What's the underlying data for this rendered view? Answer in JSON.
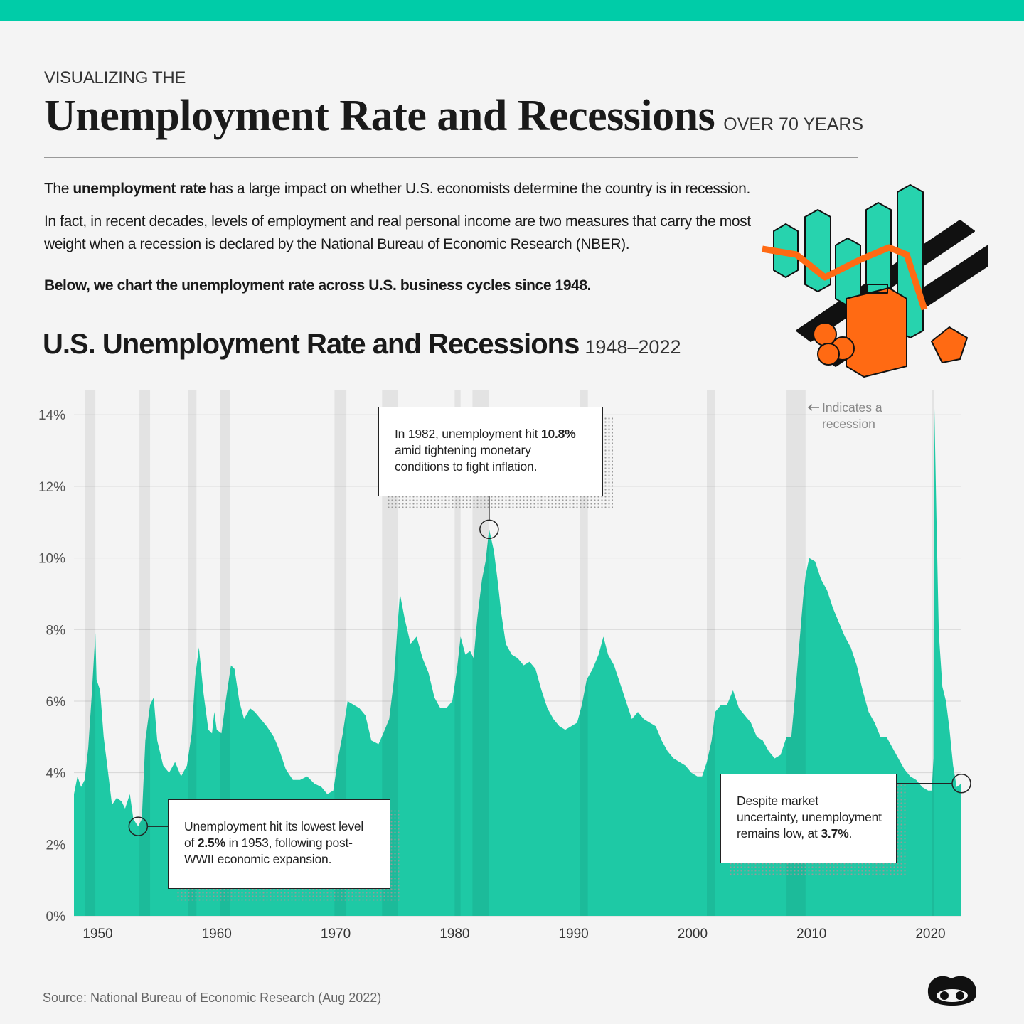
{
  "header": {
    "kicker": "VISUALIZING THE",
    "title": "Unemployment Rate and Recessions",
    "title_suffix": "OVER 70 YEARS"
  },
  "intro": {
    "paragraphs": [
      [
        "The ",
        "unemployment rate",
        " has a large impact on whether U.S. economists determine the country is in recession."
      ],
      [
        "In fact, in recent decades, levels of employment and real personal income are two measures that carry the most weight when a recession is declared by the National Bureau of Economic Research (NBER)."
      ],
      [
        "Below, we chart the unemployment rate across U.S. business cycles since 1948."
      ]
    ]
  },
  "chart_data": {
    "type": "area",
    "title": "U.S. Unemployment Rate and Recessions",
    "subtitle": "1948–2022",
    "color": "#1ec9a5",
    "x": [
      1948.0,
      1948.3,
      1948.6,
      1948.9,
      1949.2,
      1949.5,
      1949.8,
      1949.9,
      1950.2,
      1950.5,
      1950.8,
      1951.2,
      1951.6,
      1952.0,
      1952.3,
      1952.7,
      1953.0,
      1953.4,
      1953.7,
      1954.0,
      1954.4,
      1954.7,
      1955.0,
      1955.5,
      1956.0,
      1956.5,
      1957.0,
      1957.5,
      1957.9,
      1958.2,
      1958.5,
      1958.9,
      1959.3,
      1959.6,
      1959.8,
      1960.0,
      1960.4,
      1960.8,
      1961.2,
      1961.5,
      1961.9,
      1962.3,
      1962.8,
      1963.2,
      1963.7,
      1964.2,
      1964.8,
      1965.3,
      1965.8,
      1966.4,
      1967.0,
      1967.6,
      1968.2,
      1968.8,
      1969.3,
      1969.8,
      1970.2,
      1970.6,
      1971.0,
      1971.5,
      1972.0,
      1972.5,
      1973.0,
      1973.6,
      1974.0,
      1974.5,
      1974.9,
      1975.2,
      1975.4,
      1975.8,
      1976.3,
      1976.8,
      1977.3,
      1977.8,
      1978.3,
      1978.8,
      1979.3,
      1979.8,
      1980.2,
      1980.5,
      1980.9,
      1981.3,
      1981.6,
      1981.9,
      1982.3,
      1982.6,
      1982.9,
      1983.3,
      1983.6,
      1983.9,
      1984.3,
      1984.8,
      1985.3,
      1985.8,
      1986.3,
      1986.8,
      1987.3,
      1987.8,
      1988.3,
      1988.8,
      1989.3,
      1989.8,
      1990.3,
      1990.7,
      1991.1,
      1991.6,
      1992.1,
      1992.5,
      1992.9,
      1993.4,
      1993.9,
      1994.4,
      1994.9,
      1995.4,
      1995.9,
      1996.4,
      1996.9,
      1997.4,
      1997.9,
      1998.4,
      1998.9,
      1999.4,
      1999.9,
      2000.4,
      2000.8,
      2001.2,
      2001.6,
      2001.9,
      2002.4,
      2002.9,
      2003.4,
      2003.9,
      2004.4,
      2004.9,
      2005.4,
      2005.9,
      2006.4,
      2006.9,
      2007.4,
      2007.9,
      2008.3,
      2008.6,
      2008.9,
      2009.3,
      2009.5,
      2009.8,
      2010.3,
      2010.8,
      2011.3,
      2011.8,
      2012.3,
      2012.8,
      2013.3,
      2013.8,
      2014.3,
      2014.8,
      2015.3,
      2015.8,
      2016.3,
      2016.8,
      2017.3,
      2017.8,
      2018.3,
      2018.8,
      2019.3,
      2019.8,
      2020.1,
      2020.25,
      2020.3,
      2020.5,
      2020.7,
      2021.0,
      2021.3,
      2021.6,
      2021.9,
      2022.2,
      2022.6
    ],
    "values": [
      3.4,
      3.9,
      3.6,
      3.8,
      4.7,
      6.2,
      7.9,
      6.6,
      6.3,
      5.0,
      4.2,
      3.1,
      3.3,
      3.2,
      3.0,
      3.4,
      2.7,
      2.5,
      2.7,
      4.9,
      5.9,
      6.1,
      4.9,
      4.2,
      4.0,
      4.3,
      3.9,
      4.2,
      5.1,
      6.7,
      7.5,
      6.2,
      5.2,
      5.1,
      5.7,
      5.2,
      5.1,
      6.1,
      7.0,
      6.9,
      6.0,
      5.5,
      5.8,
      5.7,
      5.5,
      5.3,
      5.0,
      4.6,
      4.1,
      3.8,
      3.8,
      3.9,
      3.7,
      3.6,
      3.4,
      3.5,
      4.4,
      5.1,
      6.0,
      5.9,
      5.8,
      5.6,
      4.9,
      4.8,
      5.1,
      5.5,
      6.6,
      8.1,
      9.0,
      8.3,
      7.6,
      7.8,
      7.2,
      6.8,
      6.1,
      5.8,
      5.8,
      6.0,
      6.9,
      7.8,
      7.3,
      7.4,
      7.2,
      8.3,
      9.4,
      9.9,
      10.8,
      10.2,
      9.4,
      8.5,
      7.6,
      7.3,
      7.2,
      7.0,
      7.1,
      6.9,
      6.3,
      5.8,
      5.5,
      5.3,
      5.2,
      5.3,
      5.4,
      5.9,
      6.6,
      6.9,
      7.3,
      7.8,
      7.3,
      7.0,
      6.5,
      6.0,
      5.5,
      5.7,
      5.5,
      5.4,
      5.3,
      4.9,
      4.6,
      4.4,
      4.3,
      4.2,
      4.0,
      3.9,
      3.9,
      4.3,
      4.9,
      5.7,
      5.9,
      5.9,
      6.3,
      5.8,
      5.6,
      5.4,
      5.0,
      4.9,
      4.6,
      4.4,
      4.5,
      5.0,
      5.0,
      6.1,
      7.3,
      8.9,
      9.5,
      10.0,
      9.9,
      9.4,
      9.1,
      8.6,
      8.2,
      7.8,
      7.5,
      7.0,
      6.3,
      5.7,
      5.4,
      5.0,
      5.0,
      4.7,
      4.4,
      4.1,
      3.9,
      3.8,
      3.6,
      3.5,
      3.5,
      4.4,
      14.7,
      11.1,
      7.9,
      6.4,
      6.0,
      5.2,
      4.2,
      3.6,
      3.7
    ],
    "recessions": [
      [
        1948.9,
        1949.8
      ],
      [
        1953.5,
        1954.4
      ],
      [
        1957.6,
        1958.3
      ],
      [
        1960.3,
        1961.1
      ],
      [
        1969.9,
        1970.9
      ],
      [
        1973.9,
        1975.2
      ],
      [
        1980.0,
        1980.5
      ],
      [
        1981.5,
        1982.9
      ],
      [
        1990.5,
        1991.2
      ],
      [
        2001.2,
        2001.9
      ],
      [
        2007.9,
        2009.5
      ],
      [
        2020.1,
        2020.3
      ]
    ],
    "recession_label": "Indicates a recession",
    "xlim": [
      1948,
      2022.6
    ],
    "xticks": [
      1950,
      1960,
      1970,
      1980,
      1990,
      2000,
      2010,
      2020
    ],
    "ylim": [
      0,
      14.7
    ],
    "yticks": [
      {
        "value": 0,
        "label": "0%"
      },
      {
        "value": 2,
        "label": "2%"
      },
      {
        "value": 4,
        "label": "4%"
      },
      {
        "value": 6,
        "label": "6%"
      },
      {
        "value": 8,
        "label": "8%"
      },
      {
        "value": 10,
        "label": "10%"
      },
      {
        "value": 12,
        "label": "12%"
      },
      {
        "value": 14,
        "label": "14%"
      }
    ],
    "grid": true,
    "annotations": [
      {
        "x": 1953.4,
        "y": 2.5,
        "text": [
          "Unemployment hit its lowest level of ",
          "2.5%",
          " in 1953, following post-WWII economic expansion."
        ]
      },
      {
        "x": 1982.9,
        "y": 10.8,
        "text": [
          "In 1982, unemployment hit ",
          "10.8%",
          " amid tightening monetary conditions to fight inflation."
        ]
      },
      {
        "x": 2022.6,
        "y": 3.7,
        "text": [
          "Despite market uncertainty, unemployment remains low, at ",
          "3.7%",
          "."
        ]
      }
    ],
    "source": "Source: National Bureau of Economic Research (Aug 2022)"
  }
}
